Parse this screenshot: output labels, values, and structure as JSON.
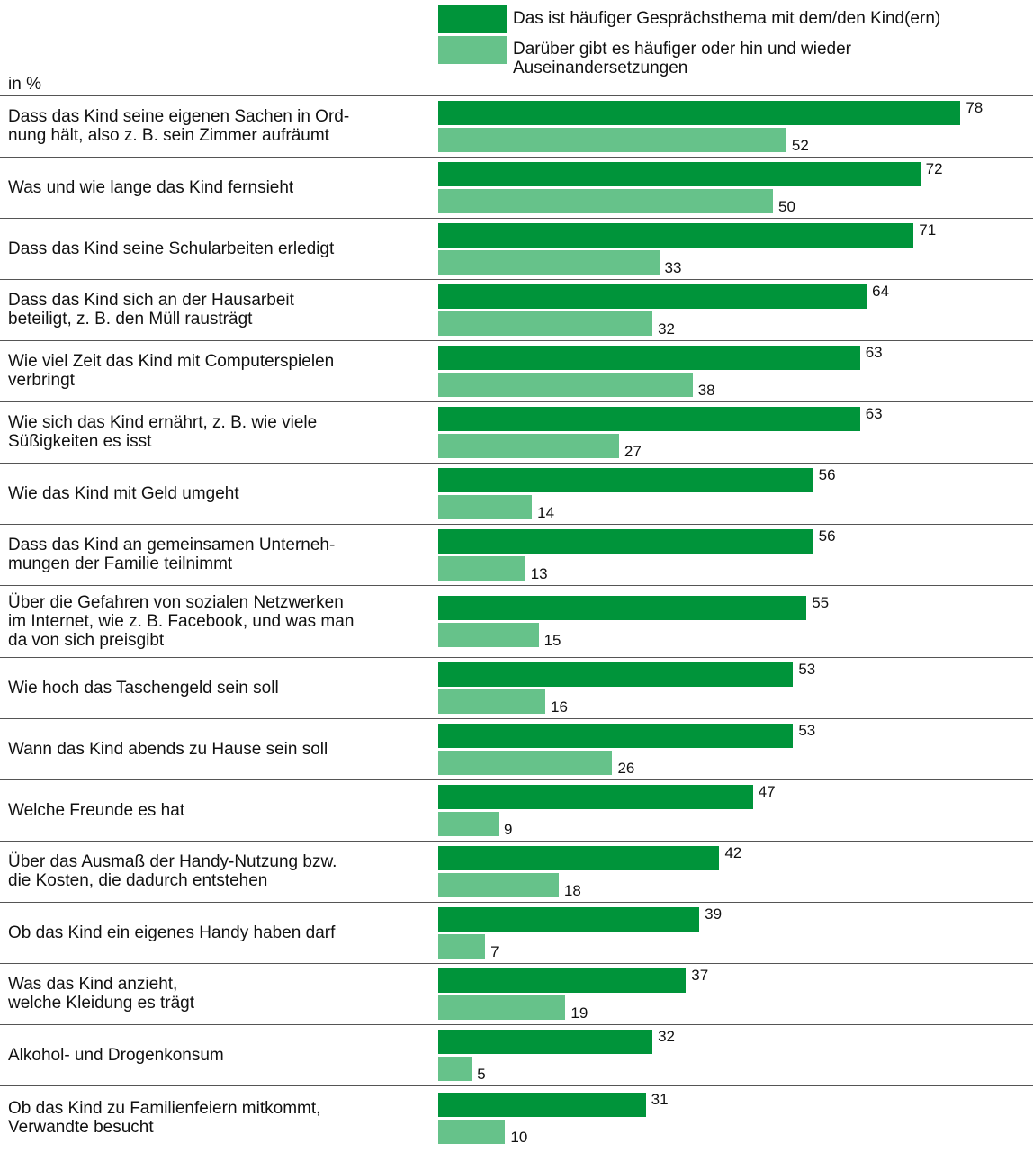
{
  "chart_data": {
    "type": "bar",
    "orientation": "horizontal",
    "unit_label": "in %",
    "xlim": [
      0,
      80
    ],
    "legend_position": "top",
    "series": [
      {
        "name": "Das ist häufiger Gesprächsthema mit dem/den Kind(ern)",
        "color": "#00943a",
        "values": [
          78,
          72,
          71,
          64,
          63,
          63,
          56,
          56,
          55,
          53,
          53,
          47,
          42,
          39,
          37,
          32,
          31
        ]
      },
      {
        "name": "Darüber gibt es häufiger oder hin und wieder\nAuseinandersetzungen",
        "color": "#66c28a",
        "values": [
          52,
          50,
          33,
          32,
          38,
          27,
          14,
          13,
          15,
          16,
          26,
          9,
          18,
          7,
          19,
          5,
          10
        ]
      }
    ],
    "categories": [
      "Dass das Kind seine eigenen Sachen in Ord-\nnung hält, also z. B. sein Zimmer aufräumt",
      "Was und wie lange das Kind fernsieht",
      "Dass das Kind seine Schularbeiten erledigt",
      "Dass das Kind sich an der Hausarbeit\nbeteiligt, z. B. den Müll rausträgt",
      "Wie viel Zeit das Kind mit Computerspielen\nverbringt",
      "Wie sich das Kind ernährt, z. B. wie viele\nSüßigkeiten es isst",
      "Wie das Kind mit Geld umgeht",
      "Dass das Kind an gemeinsamen Unterneh-\nmungen der Familie teilnimmt",
      "Über die Gefahren von sozialen Netzwerken\nim Internet, wie z. B. Facebook, und was man\nda von sich preisgibt",
      "Wie hoch das Taschengeld sein soll",
      "Wann das Kind abends zu Hause sein soll",
      "Welche Freunde es hat",
      "Über das Ausmaß der Handy-Nutzung bzw.\ndie Kosten, die dadurch entstehen",
      "Ob das Kind ein eigenes Handy haben darf",
      "Was das Kind anzieht,\nwelche Kleidung es trägt",
      "Alkohol- und Drogenkonsum",
      "Ob das Kind zu Familienfeiern mitkommt,\nVerwandte besucht"
    ]
  }
}
